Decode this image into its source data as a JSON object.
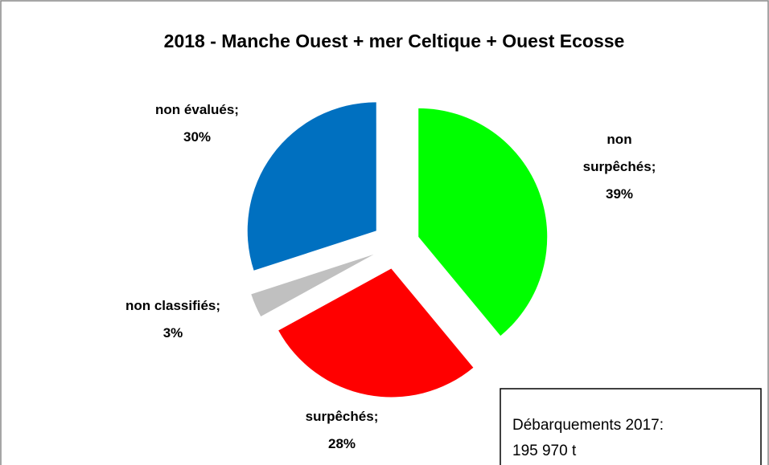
{
  "chart_data": {
    "type": "pie",
    "title": "2018 - Manche Ouest + mer Celtique + Ouest Ecosse",
    "categories": [
      "non surpêchés",
      "surpêchés",
      "non classifiés",
      "non évalués"
    ],
    "values": [
      39,
      28,
      3,
      30
    ],
    "value_labels": [
      "39%",
      "28%",
      "3%",
      "30%"
    ],
    "label_separator": ";",
    "colors": [
      "#00ff00",
      "#ff0000",
      "#c0c0c0",
      "#0070c0"
    ],
    "annotation": [
      "Débarquements 2017:",
      "195 970 t"
    ]
  }
}
